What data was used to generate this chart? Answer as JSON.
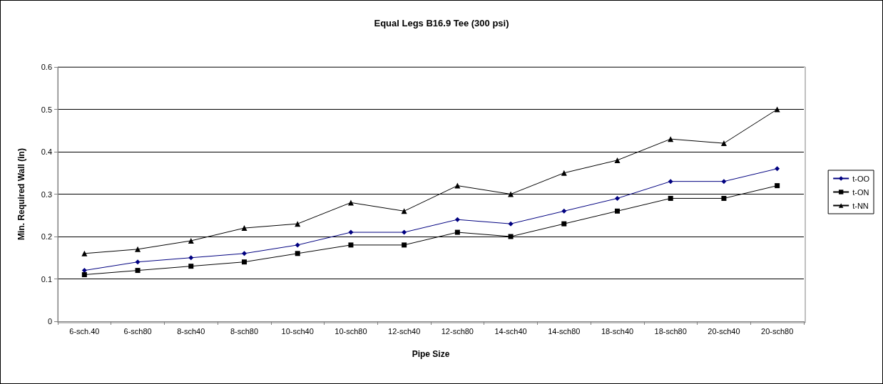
{
  "chart_data": {
    "type": "line",
    "title": "Equal Legs B16.9 Tee (300 psi)",
    "xlabel": "Pipe Size",
    "ylabel": "Min. Required Wall (in)",
    "categories": [
      "6-sch.40",
      "6-sch80",
      "8-sch40",
      "8-sch80",
      "10-sch40",
      "10-sch80",
      "12-sch40",
      "12-sch80",
      "14-sch40",
      "14-sch80",
      "18-sch40",
      "18-sch80",
      "20-sch40",
      "20-sch80"
    ],
    "series": [
      {
        "name": "t-OO",
        "color": "#000080",
        "marker": "diamond",
        "values": [
          0.12,
          0.14,
          0.15,
          0.16,
          0.18,
          0.21,
          0.21,
          0.24,
          0.23,
          0.26,
          0.29,
          0.33,
          0.33,
          0.36
        ]
      },
      {
        "name": "t-ON",
        "color": "#000000",
        "marker": "square",
        "values": [
          0.11,
          0.12,
          0.13,
          0.14,
          0.16,
          0.18,
          0.18,
          0.21,
          0.2,
          0.23,
          0.26,
          0.29,
          0.29,
          0.32
        ]
      },
      {
        "name": "t-NN",
        "color": "#000000",
        "marker": "triangle",
        "values": [
          0.16,
          0.17,
          0.19,
          0.22,
          0.23,
          0.28,
          0.26,
          0.32,
          0.3,
          0.35,
          0.38,
          0.43,
          0.42,
          0.5
        ]
      }
    ],
    "ylim": [
      0,
      0.6
    ],
    "yticks": [
      0,
      0.1,
      0.2,
      0.3,
      0.4,
      0.5,
      0.6
    ],
    "grid": "y",
    "legend": "right",
    "line_style": "solid"
  }
}
